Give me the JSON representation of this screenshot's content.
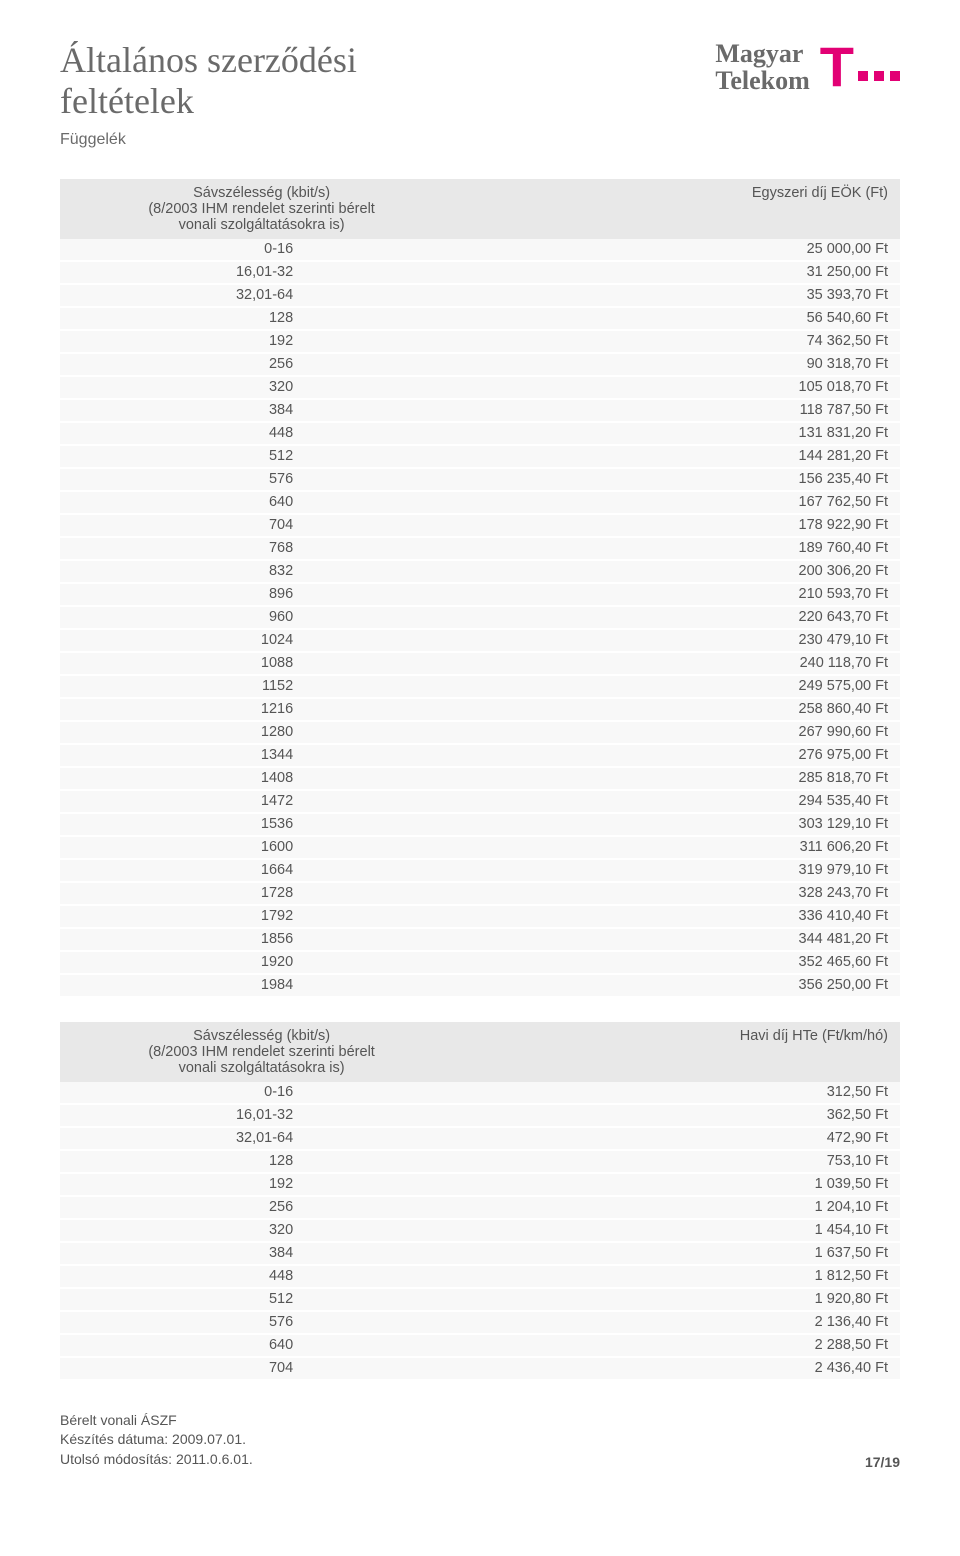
{
  "header": {
    "title_line1": "Általános szerződési",
    "title_line2": "feltételek",
    "subtitle": "Függelék",
    "logo_line1": "Magyar",
    "logo_line2": "Telekom",
    "brand_color": "#e20074"
  },
  "table1": {
    "col1_header_l1": "Sávszélesség (kbit/s)",
    "col1_header_l2": "(8/2003 IHM rendelet szerinti bérelt",
    "col1_header_l3": "vonali szolgáltatásokra is)",
    "col2_header": "Egyszeri díj EÖK (Ft)",
    "rows": [
      {
        "b": "0-16",
        "v": "25 000,00 Ft"
      },
      {
        "b": "16,01-32",
        "v": "31 250,00 Ft"
      },
      {
        "b": "32,01-64",
        "v": "35 393,70 Ft"
      },
      {
        "b": "128",
        "v": "56 540,60 Ft"
      },
      {
        "b": "192",
        "v": "74 362,50 Ft"
      },
      {
        "b": "256",
        "v": "90 318,70 Ft"
      },
      {
        "b": "320",
        "v": "105 018,70 Ft"
      },
      {
        "b": "384",
        "v": "118 787,50 Ft"
      },
      {
        "b": "448",
        "v": "131 831,20 Ft"
      },
      {
        "b": "512",
        "v": "144 281,20 Ft"
      },
      {
        "b": "576",
        "v": "156 235,40 Ft"
      },
      {
        "b": "640",
        "v": "167 762,50 Ft"
      },
      {
        "b": "704",
        "v": "178 922,90 Ft"
      },
      {
        "b": "768",
        "v": "189 760,40 Ft"
      },
      {
        "b": "832",
        "v": "200 306,20 Ft"
      },
      {
        "b": "896",
        "v": "210 593,70 Ft"
      },
      {
        "b": "960",
        "v": "220 643,70 Ft"
      },
      {
        "b": "1024",
        "v": "230 479,10 Ft"
      },
      {
        "b": "1088",
        "v": "240 118,70 Ft"
      },
      {
        "b": "1152",
        "v": "249 575,00 Ft"
      },
      {
        "b": "1216",
        "v": "258 860,40 Ft"
      },
      {
        "b": "1280",
        "v": "267 990,60 Ft"
      },
      {
        "b": "1344",
        "v": "276 975,00 Ft"
      },
      {
        "b": "1408",
        "v": "285 818,70 Ft"
      },
      {
        "b": "1472",
        "v": "294 535,40 Ft"
      },
      {
        "b": "1536",
        "v": "303 129,10 Ft"
      },
      {
        "b": "1600",
        "v": "311 606,20 Ft"
      },
      {
        "b": "1664",
        "v": "319 979,10 Ft"
      },
      {
        "b": "1728",
        "v": "328 243,70 Ft"
      },
      {
        "b": "1792",
        "v": "336 410,40 Ft"
      },
      {
        "b": "1856",
        "v": "344 481,20 Ft"
      },
      {
        "b": "1920",
        "v": "352 465,60 Ft"
      },
      {
        "b": "1984",
        "v": "356 250,00 Ft"
      }
    ]
  },
  "table2": {
    "col1_header_l1": "Sávszélesség (kbit/s)",
    "col1_header_l2": "(8/2003 IHM rendelet szerinti bérelt",
    "col1_header_l3": "vonali szolgáltatásokra is)",
    "col2_header": "Havi díj HTe (Ft/km/hó)",
    "rows": [
      {
        "b": "0-16",
        "v": "312,50 Ft"
      },
      {
        "b": "16,01-32",
        "v": "362,50 Ft"
      },
      {
        "b": "32,01-64",
        "v": "472,90 Ft"
      },
      {
        "b": "128",
        "v": "753,10 Ft"
      },
      {
        "b": "192",
        "v": "1 039,50 Ft"
      },
      {
        "b": "256",
        "v": "1 204,10 Ft"
      },
      {
        "b": "320",
        "v": "1 454,10 Ft"
      },
      {
        "b": "384",
        "v": "1 637,50 Ft"
      },
      {
        "b": "448",
        "v": "1 812,50 Ft"
      },
      {
        "b": "512",
        "v": "1 920,80 Ft"
      },
      {
        "b": "576",
        "v": "2 136,40 Ft"
      },
      {
        "b": "640",
        "v": "2 288,50 Ft"
      },
      {
        "b": "704",
        "v": "2 436,40 Ft"
      }
    ]
  },
  "footer": {
    "line1": "Bérelt vonali ÁSZF",
    "line2": "Készítés dátuma: 2009.07.01.",
    "line3": "Utolsó módosítás: 2011.0.6.01.",
    "page": "17/19"
  },
  "style": {
    "header_bg": "#e8e8e8",
    "row_bg": "#f8f8f8",
    "text_color": "#555555",
    "title_color": "#6a6a6a",
    "page_bg": "#ffffff",
    "font_size_body": 14.5,
    "font_size_title": 36
  }
}
